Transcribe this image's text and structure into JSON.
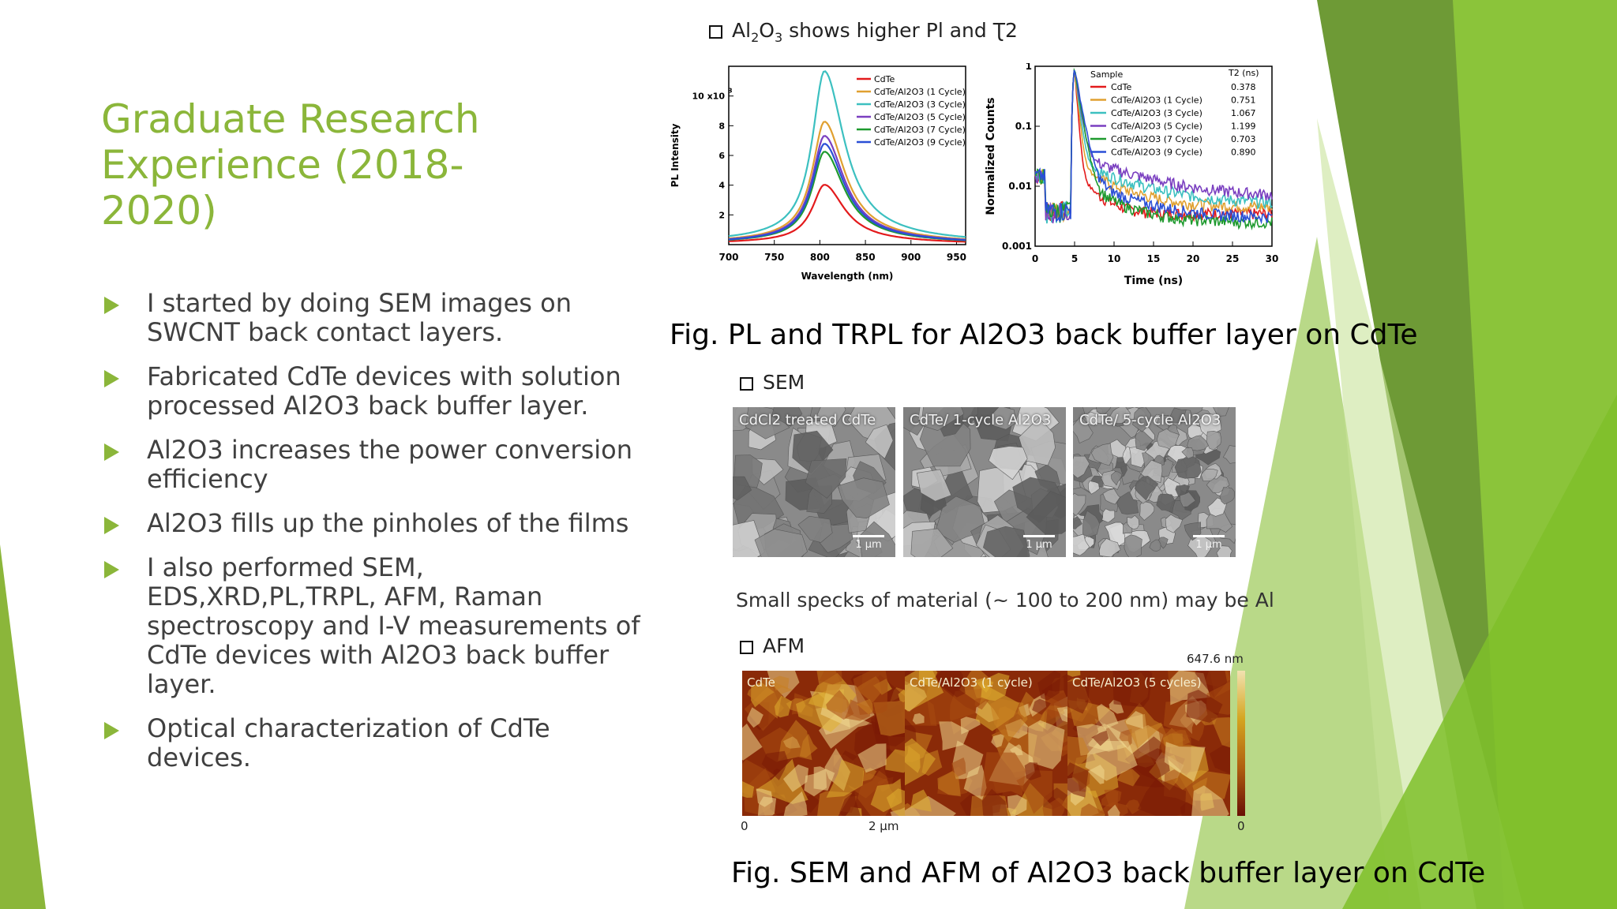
{
  "slide": {
    "title": "Graduate Research Experience (2018-2020)",
    "bullets": [
      "I started by doing SEM images on SWCNT back contact layers.",
      "Fabricated CdTe devices with solution processed Al2O3 back buffer layer.",
      "Al2O3 increases the power conversion efficiency",
      "Al2O3 fills up the pinholes of the films",
      "I also performed SEM, EDS,XRD,PL,TRPL, AFM, Raman spectroscopy and I-V measurements of CdTe devices with Al2O3  back buffer layer.",
      "Optical characterization of CdTe devices."
    ],
    "colors": {
      "accent": "#8bb63a",
      "text": "#404040"
    }
  },
  "figure1": {
    "heading_prefix": "Al",
    "heading_sub1": "2",
    "heading_mid": "O",
    "heading_sub2": "3",
    "heading_rest": " shows higher Pl and Ʈ2",
    "caption": "Fig. PL and TRPL for Al2O3 back buffer layer on CdTe"
  },
  "figure2": {
    "sem_heading": "SEM",
    "sem_images": [
      {
        "label": "CdCl2 treated CdTe",
        "scale": "1 µm"
      },
      {
        "label": "CdTe/ 1-cycle Al2O3",
        "scale": "1 µm"
      },
      {
        "label": "CdTe/ 5-cycle Al2O3",
        "scale": "1 µm"
      }
    ],
    "note": "Small specks of material (~ 100 to 200 nm) may be Al",
    "afm_heading": "AFM",
    "afm_images": [
      {
        "label": "CdTe"
      },
      {
        "label": "CdTe/Al2O3 (1 cycle)"
      },
      {
        "label": "CdTe/Al2O3 (5 cycles)"
      }
    ],
    "afm_max": "647.6 nm",
    "afm_min": "0",
    "afm_x0": "0",
    "afm_xlabel": "2 µm",
    "caption": "Fig. SEM and AFM of Al2O3 back buffer layer on CdTe"
  },
  "chart_data": [
    {
      "type": "line",
      "xlabel": "Wavelength (nm)",
      "ylabel": "PL Intensity",
      "xlim": [
        700,
        960
      ],
      "ylim": [
        0,
        12
      ],
      "xticks": [
        700,
        750,
        800,
        850,
        900,
        950
      ],
      "yticks": [
        2,
        4,
        6,
        8,
        10
      ],
      "ytick_labels": [
        "2",
        "4",
        "6",
        "8",
        "10 x10"
      ],
      "ytick_exponent": "3",
      "peak_x": 805,
      "series": [
        {
          "name": "CdTe",
          "color": "#e31a1c",
          "peak": 3.7
        },
        {
          "name": "CdTe/Al2O3 (1 Cycle)",
          "color": "#e0a030",
          "peak": 7.7
        },
        {
          "name": "CdTe/Al2O3 (3 Cycle)",
          "color": "#3cc0c0",
          "peak": 10.9
        },
        {
          "name": "CdTe/Al2O3 (5 Cycle)",
          "color": "#7a3fc0",
          "peak": 6.8
        },
        {
          "name": "CdTe/Al2O3 (7 Cycle)",
          "color": "#1e9a2e",
          "peak": 5.8
        },
        {
          "name": "CdTe/Al2O3 (9 Cycle)",
          "color": "#2a4fd6",
          "peak": 6.3
        }
      ]
    },
    {
      "type": "line",
      "xlabel": "Time (ns)",
      "ylabel": "Normalized Counts",
      "xlim": [
        0,
        30
      ],
      "ylim": [
        0.001,
        1
      ],
      "yscale": "log",
      "xticks": [
        0,
        5,
        10,
        15,
        20,
        25,
        30
      ],
      "yticks": [
        0.001,
        0.01,
        0.1,
        1
      ],
      "ytick_labels": [
        "0.001",
        "0.01",
        "0.1",
        "1"
      ],
      "legend_header": [
        "Sample",
        "T2 (ns)"
      ],
      "series": [
        {
          "name": "CdTe",
          "color": "#e31a1c",
          "tau2": "0.378",
          "tail": 0.0035
        },
        {
          "name": "CdTe/Al2O3 (1 Cycle)",
          "color": "#e0a030",
          "tau2": "0.751",
          "tail": 0.0045
        },
        {
          "name": "CdTe/Al2O3 (3 Cycle)",
          "color": "#3cc0c0",
          "tau2": "1.067",
          "tail": 0.005
        },
        {
          "name": "CdTe/Al2O3 (5 Cycle)",
          "color": "#7a3fc0",
          "tau2": "1.199",
          "tail": 0.0065
        },
        {
          "name": "CdTe/Al2O3 (7 Cycle)",
          "color": "#1e9a2e",
          "tau2": "0.703",
          "tail": 0.0025
        },
        {
          "name": "CdTe/Al2O3 (9 Cycle)",
          "color": "#2a4fd6",
          "tau2": "0.890",
          "tail": 0.003
        }
      ]
    }
  ]
}
